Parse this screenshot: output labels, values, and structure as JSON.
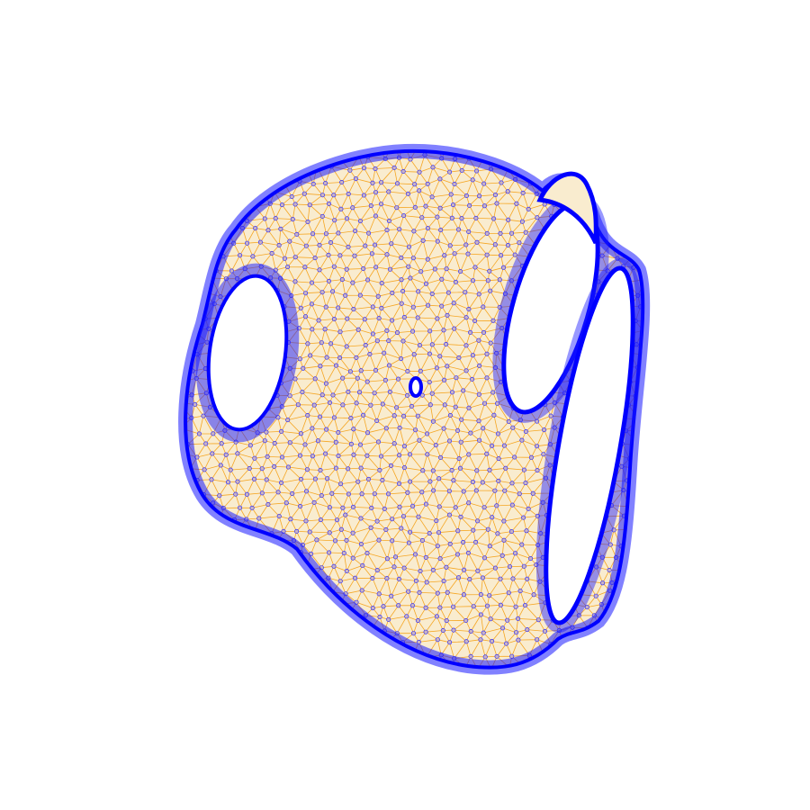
{
  "figure": {
    "type": "triangulated-mesh",
    "background_color": "#ffffff",
    "edge_color": "#f5a623",
    "vertex_stroke_color": "#1a1aff",
    "vertex_fill_color": "#c9b3c4",
    "boundary_color": "#0000ff"
  }
}
